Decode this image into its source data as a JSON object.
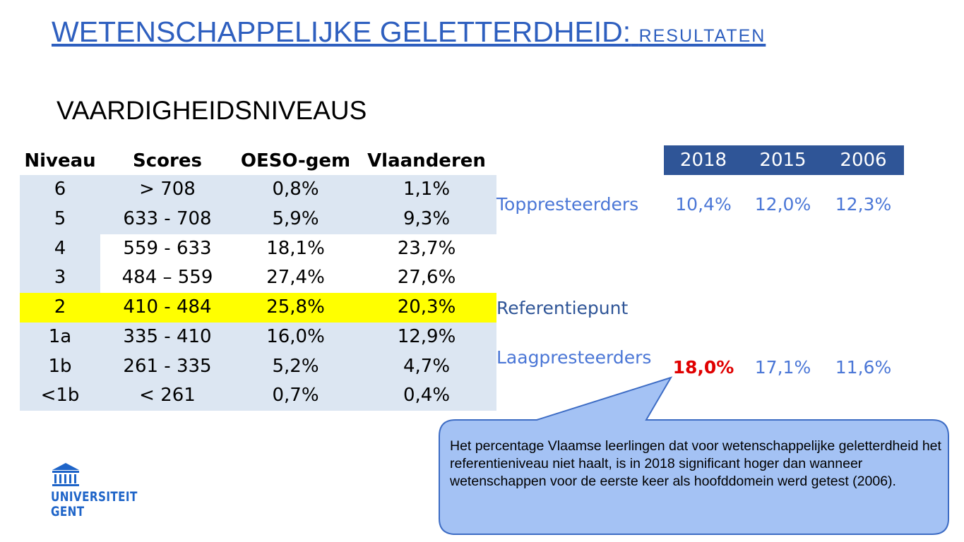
{
  "header": {
    "title": "WETENSCHAPPELIJKE GELETTERDHEID:",
    "title_suffix": "RESULTATEN",
    "subtitle": "VAARDIGHEIDSNIVEAUS"
  },
  "levels_table": {
    "header": [
      "Niveau",
      "Scores",
      "OESO-gem",
      "Vlaanderen"
    ],
    "rows": [
      [
        "6",
        "> 708",
        "0,8%",
        "1,1%"
      ],
      [
        "5",
        "633 - 708",
        "5,9%",
        "9,3%"
      ],
      [
        "4",
        "559 - 633",
        "18,1%",
        "23,7%"
      ],
      [
        "3",
        "484 – 559",
        "27,4%",
        "27,6%"
      ],
      [
        "2",
        "410 - 484",
        "25,8%",
        "20,3%"
      ],
      [
        "1a",
        "335 - 410",
        "16,0%",
        "12,9%"
      ],
      [
        "1b",
        "261 - 335",
        "5,2%",
        "4,7%"
      ],
      [
        "<1b",
        "< 261",
        "0,7%",
        "0,4%"
      ]
    ]
  },
  "years_table": {
    "header": [
      "2018",
      "2015",
      "2006"
    ],
    "rows": [
      {
        "label": "Toppresteerders",
        "values": [
          "10,4%",
          "12,0%",
          "12,3%"
        ]
      },
      {
        "label": "Referentiepunt"
      },
      {
        "label": "Laagpresteerders",
        "values": [
          "18,0%",
          "17,1%",
          "11,6%"
        ]
      }
    ]
  },
  "callout": "Het percentage Vlaamse leerlingen dat voor wetenschappelijke geletterdheid het referentieniveau niet haalt, is in 2018 significant hoger dan wanneer wetenschappen voor de eerste keer als hoofddomein werd getest (2006).",
  "logo": [
    "UNIVERSITEIT",
    "GENT"
  ]
}
